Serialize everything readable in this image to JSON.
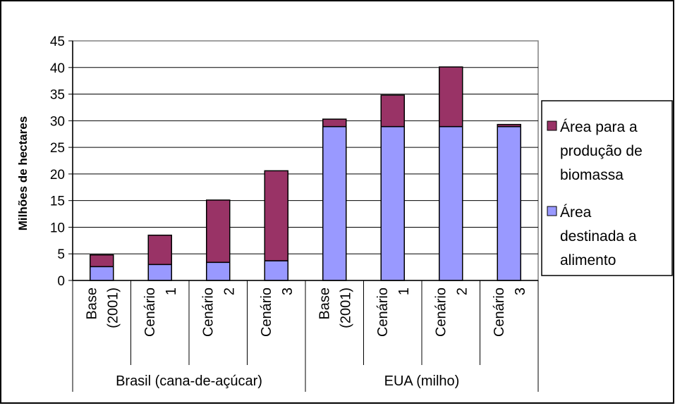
{
  "chart_data": {
    "type": "bar",
    "stacked": true,
    "ylabel": "Milhões de hectares",
    "ylim": [
      0,
      45
    ],
    "yticks": [
      "0",
      "5",
      "10",
      "15",
      "20",
      "25",
      "30",
      "35",
      "40",
      "45"
    ],
    "grid": true,
    "legend_position": "right",
    "categories": [
      [
        "Base",
        "(2001)"
      ],
      [
        "Cenário",
        "1"
      ],
      [
        "Cenário",
        "2"
      ],
      [
        "Cenário",
        "3"
      ],
      [
        "Base",
        "(2001)"
      ],
      [
        "Cenário",
        "1"
      ],
      [
        "Cenário",
        "2"
      ],
      [
        "Cenário",
        "3"
      ]
    ],
    "groups": [
      {
        "label": "Brasil (cana-de-açúcar)",
        "size": 4
      },
      {
        "label": "EUA (milho)",
        "size": 4
      }
    ],
    "series": [
      {
        "name": "Área destinada a alimento",
        "legend_lines": [
          "Área",
          "destinada a",
          "alimento"
        ],
        "color": "#9999ff",
        "values": [
          2.6,
          3.0,
          3.4,
          3.7,
          28.9,
          28.9,
          28.9,
          28.9
        ]
      },
      {
        "name": "Área para a produção de biomassa",
        "legend_lines": [
          "Área para a",
          "produção de",
          "biomassa"
        ],
        "color": "#993366",
        "values": [
          2.2,
          5.5,
          11.7,
          16.9,
          1.4,
          5.9,
          11.2,
          0.4
        ]
      }
    ]
  }
}
